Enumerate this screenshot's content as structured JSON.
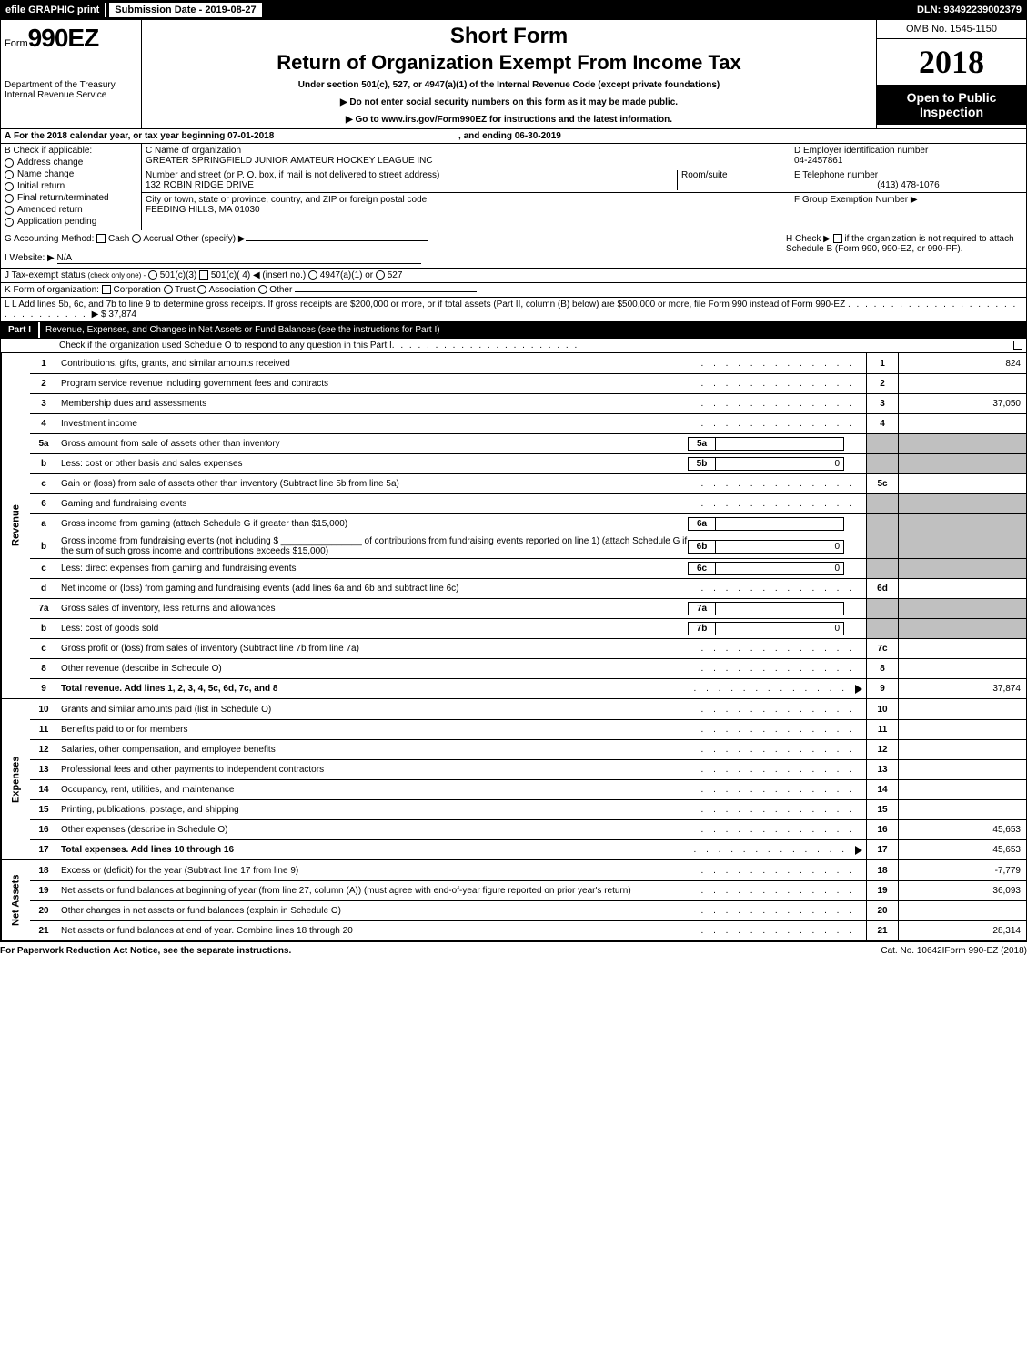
{
  "colors": {
    "black": "#000000",
    "white": "#ffffff",
    "shaded": "#c0c0c0"
  },
  "top": {
    "efile": "efile GRAPHIC print",
    "submission": "Submission Date - 2019-08-27",
    "dln": "DLN: 93492239002379"
  },
  "header": {
    "form_label": "Form",
    "form_number": "990EZ",
    "short_form": "Short Form",
    "title": "Return of Organization Exempt From Income Tax",
    "under": "Under section 501(c), 527, or 4947(a)(1) of the Internal Revenue Code (except private foundations)",
    "arrow1": "▶ Do not enter social security numbers on this form as it may be made public.",
    "arrow2": "▶ Go to www.irs.gov/Form990EZ for instructions and the latest information.",
    "omb": "OMB No. 1545-1150",
    "year": "2018",
    "open": "Open to Public Inspection",
    "dept": "Department of the Treasury",
    "irs": "Internal Revenue Service"
  },
  "lineA": {
    "prefix": "A",
    "text": "For the 2018 calendar year, or tax year beginning 07-01-2018",
    "ending": ", and ending 06-30-2019"
  },
  "colB": {
    "label": "B",
    "check": "Check if applicable:",
    "items": [
      "Address change",
      "Name change",
      "Initial return",
      "Final return/terminated",
      "Amended return",
      "Application pending"
    ]
  },
  "colC": {
    "c_label": "C Name of organization",
    "org_name": "GREATER SPRINGFIELD JUNIOR AMATEUR HOCKEY LEAGUE INC",
    "addr_label": "Number and street (or P. O. box, if mail is not delivered to street address)",
    "addr": "132 ROBIN RIDGE DRIVE",
    "room_label": "Room/suite",
    "city_label": "City or town, state or province, country, and ZIP or foreign postal code",
    "city": "FEEDING HILLS, MA  01030"
  },
  "colD": {
    "d_label": "D Employer identification number",
    "ein": "04-2457861",
    "e_label": "E Telephone number",
    "phone": "(413) 478-1076",
    "f_label": "F Group Exemption Number",
    "f_arrow": "▶"
  },
  "lineG": {
    "label": "G Accounting Method:",
    "cash": "Cash",
    "accrual": "Accrual",
    "other": "Other (specify) ▶"
  },
  "lineH": {
    "label": "H",
    "text1": "Check ▶",
    "text2": "if the organization is not required to attach Schedule B (Form 990, 990-EZ, or 990-PF)."
  },
  "lineI": {
    "label": "I Website: ▶",
    "value": "N/A"
  },
  "lineJ": {
    "label": "J Tax-exempt status",
    "sub": "(check only one) -",
    "opts": [
      "501(c)(3)",
      "501(c)( 4) ◀ (insert no.)",
      "4947(a)(1) or",
      "527"
    ]
  },
  "lineK": {
    "label": "K Form of organization:",
    "opts": [
      "Corporation",
      "Trust",
      "Association",
      "Other"
    ]
  },
  "lineL": {
    "text": "L Add lines 5b, 6c, and 7b to line 9 to determine gross receipts. If gross receipts are $200,000 or more, or if total assets (Part II, column (B) below) are $500,000 or more, file Form 990 instead of Form 990-EZ",
    "amount": "▶ $ 37,874"
  },
  "part1": {
    "label": "Part I",
    "title": "Revenue, Expenses, and Changes in Net Assets or Fund Balances (see the instructions for Part I)",
    "check": "Check if the organization used Schedule O to respond to any question in this Part I"
  },
  "sections": {
    "revenue": "Revenue",
    "expenses": "Expenses",
    "netassets": "Net Assets"
  },
  "lines": [
    {
      "n": "1",
      "desc": "Contributions, gifts, grants, and similar amounts received",
      "box": "1",
      "amt": "824"
    },
    {
      "n": "2",
      "desc": "Program service revenue including government fees and contracts",
      "box": "2",
      "amt": ""
    },
    {
      "n": "3",
      "desc": "Membership dues and assessments",
      "box": "3",
      "amt": "37,050"
    },
    {
      "n": "4",
      "desc": "Investment income",
      "box": "4",
      "amt": ""
    },
    {
      "n": "5a",
      "desc": "Gross amount from sale of assets other than inventory",
      "ib": "5a",
      "ibv": ""
    },
    {
      "n": "b",
      "desc": "Less: cost or other basis and sales expenses",
      "ib": "5b",
      "ibv": "0"
    },
    {
      "n": "c",
      "desc": "Gain or (loss) from sale of assets other than inventory (Subtract line 5b from line 5a)",
      "box": "5c",
      "amt": ""
    },
    {
      "n": "6",
      "desc": "Gaming and fundraising events",
      "shaded": true
    },
    {
      "n": "a",
      "desc": "Gross income from gaming (attach Schedule G if greater than $15,000)",
      "ib": "6a",
      "ibv": ""
    },
    {
      "n": "b",
      "desc": "Gross income from fundraising events (not including $ ________________ of contributions from fundraising events reported on line 1) (attach Schedule G if the sum of such gross income and contributions exceeds $15,000)",
      "ib": "6b",
      "ibv": "0"
    },
    {
      "n": "c",
      "desc": "Less: direct expenses from gaming and fundraising events",
      "ib": "6c",
      "ibv": "0"
    },
    {
      "n": "d",
      "desc": "Net income or (loss) from gaming and fundraising events (add lines 6a and 6b and subtract line 6c)",
      "box": "6d",
      "amt": ""
    },
    {
      "n": "7a",
      "desc": "Gross sales of inventory, less returns and allowances",
      "ib": "7a",
      "ibv": ""
    },
    {
      "n": "b",
      "desc": "Less: cost of goods sold",
      "ib": "7b",
      "ibv": "0"
    },
    {
      "n": "c",
      "desc": "Gross profit or (loss) from sales of inventory (Subtract line 7b from line 7a)",
      "box": "7c",
      "amt": ""
    },
    {
      "n": "8",
      "desc": "Other revenue (describe in Schedule O)",
      "box": "8",
      "amt": ""
    },
    {
      "n": "9",
      "desc": "Total revenue. Add lines 1, 2, 3, 4, 5c, 6d, 7c, and 8",
      "box": "9",
      "amt": "37,874",
      "bold": true,
      "arrow": true
    },
    {
      "n": "10",
      "desc": "Grants and similar amounts paid (list in Schedule O)",
      "box": "10",
      "amt": ""
    },
    {
      "n": "11",
      "desc": "Benefits paid to or for members",
      "box": "11",
      "amt": ""
    },
    {
      "n": "12",
      "desc": "Salaries, other compensation, and employee benefits",
      "box": "12",
      "amt": ""
    },
    {
      "n": "13",
      "desc": "Professional fees and other payments to independent contractors",
      "box": "13",
      "amt": ""
    },
    {
      "n": "14",
      "desc": "Occupancy, rent, utilities, and maintenance",
      "box": "14",
      "amt": ""
    },
    {
      "n": "15",
      "desc": "Printing, publications, postage, and shipping",
      "box": "15",
      "amt": ""
    },
    {
      "n": "16",
      "desc": "Other expenses (describe in Schedule O)",
      "box": "16",
      "amt": "45,653"
    },
    {
      "n": "17",
      "desc": "Total expenses. Add lines 10 through 16",
      "box": "17",
      "amt": "45,653",
      "bold": true,
      "arrow": true
    },
    {
      "n": "18",
      "desc": "Excess or (deficit) for the year (Subtract line 17 from line 9)",
      "box": "18",
      "amt": "-7,779"
    },
    {
      "n": "19",
      "desc": "Net assets or fund balances at beginning of year (from line 27, column (A)) (must agree with end-of-year figure reported on prior year's return)",
      "box": "19",
      "amt": "36,093"
    },
    {
      "n": "20",
      "desc": "Other changes in net assets or fund balances (explain in Schedule O)",
      "box": "20",
      "amt": ""
    },
    {
      "n": "21",
      "desc": "Net assets or fund balances at end of year. Combine lines 18 through 20",
      "box": "21",
      "amt": "28,314"
    }
  ],
  "footer": {
    "left": "For Paperwork Reduction Act Notice, see the separate instructions.",
    "mid": "Cat. No. 10642I",
    "right": "Form 990-EZ (2018)"
  }
}
